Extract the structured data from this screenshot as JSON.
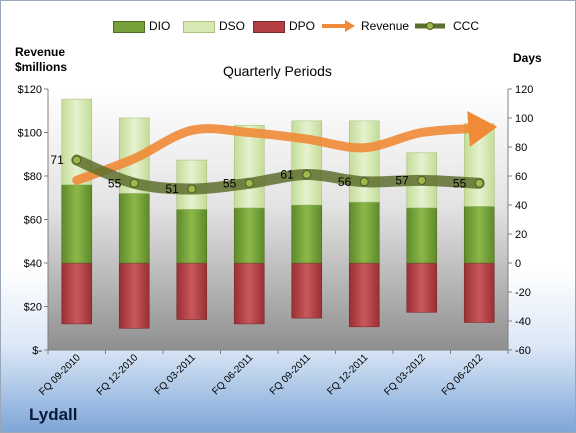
{
  "company": "Lydall",
  "chart_data": {
    "type": "bar",
    "title": "Quarterly Periods",
    "left_axis_label_line1": "Revenue",
    "left_axis_label_line2": "$millions",
    "right_axis_label": "Days",
    "categories": [
      "FQ 09-2010",
      "FQ 12-2010",
      "FQ 03-2011",
      "FQ 06-2011",
      "FQ 09-2011",
      "FQ 12-2011",
      "FQ 03-2012",
      "FQ 06-2012"
    ],
    "left_axis": {
      "min": 0,
      "max": 120,
      "step": 20,
      "tick_labels": [
        "$-",
        "$20",
        "$40",
        "$60",
        "$80",
        "$100",
        "$120"
      ]
    },
    "right_axis": {
      "min": -60,
      "max": 120,
      "step": 20,
      "tick_labels": [
        "-60",
        "-40",
        "-20",
        "0",
        "20",
        "40",
        "60",
        "80",
        "100",
        "120"
      ]
    },
    "series": [
      {
        "name": "DIO",
        "axis": "days",
        "kind": "stacked-bar",
        "color": "#77a03a",
        "values": [
          54,
          48,
          37,
          38,
          40,
          42,
          38,
          39
        ]
      },
      {
        "name": "DSO",
        "axis": "days",
        "kind": "stacked-bar",
        "color": "#d7e8b4",
        "values": [
          59,
          52,
          34,
          57,
          58,
          56,
          38,
          57
        ]
      },
      {
        "name": "DPO",
        "axis": "days",
        "kind": "negative-bar",
        "color": "#b33f43",
        "values": [
          -42,
          -45,
          -39,
          -42,
          -38,
          -44,
          -34,
          -41
        ]
      },
      {
        "name": "Revenue",
        "axis": "revenue",
        "kind": "line",
        "color": "#f08a36",
        "values": [
          78,
          88,
          101,
          100,
          97,
          93,
          100,
          102
        ]
      },
      {
        "name": "CCC",
        "axis": "days",
        "kind": "line",
        "color": "#5e6e2e",
        "values": [
          71,
          55,
          51,
          55,
          61,
          56,
          57,
          55
        ],
        "data_labels": [
          "71",
          "55",
          "51",
          "55",
          "61",
          "56",
          "57",
          "55"
        ]
      }
    ],
    "legend_placement": "top",
    "grid": false
  }
}
